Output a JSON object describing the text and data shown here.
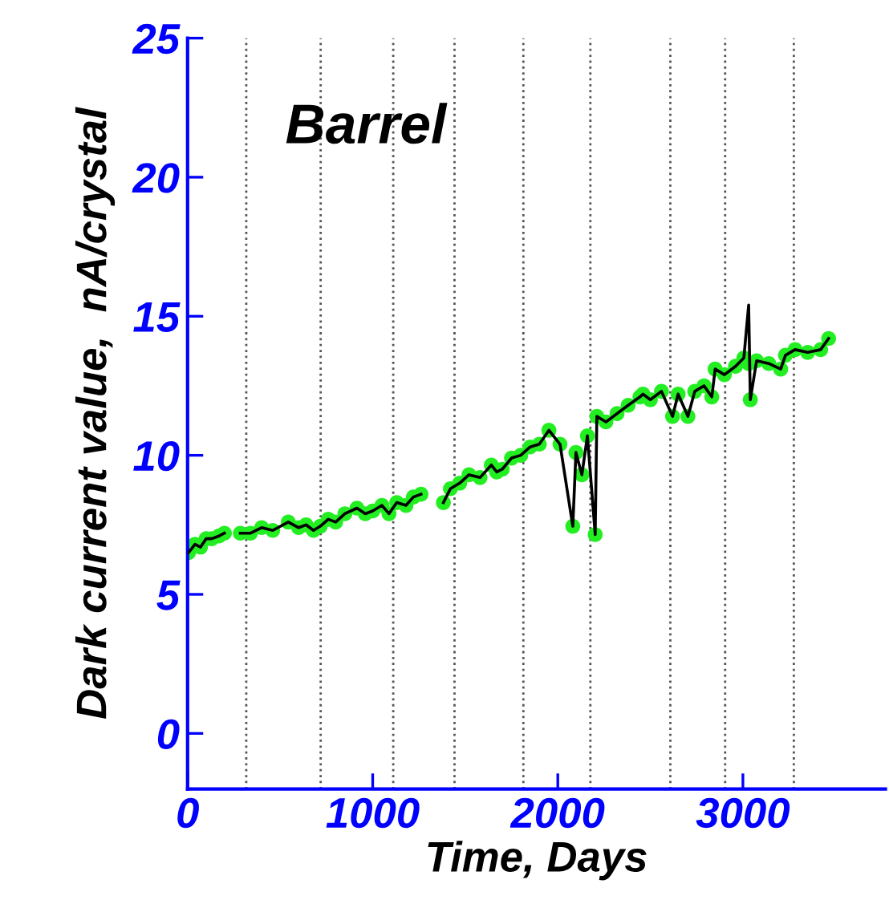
{
  "chart_data": {
    "type": "line",
    "xlabel": "Time, Days",
    "ylabel": "Dark current value,  nA/crystal",
    "annotations": [
      "Barrel"
    ],
    "xlim": [
      0,
      3770
    ],
    "xticks": [
      0,
      1000,
      2000,
      3000
    ],
    "ylim": [
      -2,
      25
    ],
    "yticks": [
      0,
      5,
      10,
      15,
      20,
      25
    ],
    "grid": false,
    "legend": false,
    "x": [
      5,
      40,
      70,
      100,
      130,
      170,
      199,
      240,
      285,
      340,
      400,
      460,
      544,
      600,
      640,
      680,
      717,
      760,
      800,
      850,
      915,
      960,
      1000,
      1050,
      1088,
      1130,
      1180,
      1220,
      1261,
      1300,
      1382,
      1420,
      1470,
      1520,
      1580,
      1641,
      1670,
      1700,
      1750,
      1800,
      1850,
      1900,
      1952,
      2012,
      2081,
      2098,
      2130,
      2160,
      2202,
      2211,
      2260,
      2320,
      2380,
      2444,
      2460,
      2500,
      2560,
      2620,
      2650,
      2703,
      2740,
      2790,
      2832,
      2850,
      2900,
      2960,
      3005,
      3031,
      3040,
      3074,
      3140,
      3204,
      3230,
      3282,
      3350,
      3420,
      3463
    ],
    "series": [
      {
        "type": "scatter",
        "color": "#22ee22",
        "marker": "circle",
        "values": [
          6.5,
          6.8,
          6.7,
          7.0,
          7.0,
          7.1,
          7.2,
          null,
          7.2,
          7.2,
          7.4,
          7.3,
          7.6,
          7.4,
          7.5,
          7.3,
          7.45,
          7.7,
          7.6,
          7.9,
          8.1,
          7.9,
          8.0,
          8.2,
          7.9,
          8.3,
          8.2,
          8.5,
          8.6,
          null,
          8.3,
          8.8,
          9.0,
          9.3,
          9.2,
          9.65,
          9.4,
          9.5,
          9.9,
          10.0,
          10.3,
          10.4,
          10.9,
          10.4,
          7.45,
          10.1,
          9.3,
          10.7,
          7.15,
          11.4,
          11.2,
          11.5,
          11.8,
          12.1,
          12.2,
          12.0,
          12.3,
          11.4,
          12.2,
          11.4,
          12.3,
          12.5,
          12.1,
          13.1,
          12.9,
          13.2,
          13.5,
          13.3,
          12.0,
          13.4,
          13.3,
          13.1,
          13.6,
          13.8,
          13.7,
          13.8,
          14.2
        ]
      },
      {
        "color": "#000000",
        "line_style": "solid",
        "values": [
          6.5,
          6.8,
          6.7,
          7.0,
          7.0,
          7.1,
          7.2,
          null,
          7.2,
          7.2,
          7.4,
          7.3,
          7.6,
          7.4,
          7.5,
          7.3,
          7.45,
          7.7,
          7.6,
          7.9,
          8.1,
          7.9,
          8.0,
          8.2,
          7.9,
          8.3,
          8.2,
          8.5,
          8.6,
          null,
          8.3,
          8.8,
          9.0,
          9.3,
          9.2,
          9.65,
          9.4,
          9.5,
          9.9,
          10.0,
          10.3,
          10.4,
          10.9,
          10.4,
          7.45,
          10.1,
          9.3,
          10.7,
          7.15,
          11.4,
          11.2,
          11.5,
          11.8,
          12.1,
          12.2,
          12.0,
          12.3,
          11.4,
          12.2,
          11.4,
          12.3,
          12.5,
          12.1,
          13.1,
          12.9,
          13.2,
          13.5,
          15.4,
          12.0,
          13.4,
          13.3,
          13.1,
          13.6,
          13.8,
          13.7,
          13.8,
          14.2
        ]
      }
    ],
    "ref_lines": [
      {
        "axis": "x",
        "value": 317,
        "color": "#555555",
        "line_style": "dotted"
      },
      {
        "axis": "x",
        "value": 719,
        "color": "#555555",
        "line_style": "dotted"
      },
      {
        "axis": "x",
        "value": 1111,
        "color": "#555555",
        "line_style": "dotted"
      },
      {
        "axis": "x",
        "value": 1442,
        "color": "#555555",
        "line_style": "dotted"
      },
      {
        "axis": "x",
        "value": 1814,
        "color": "#555555",
        "line_style": "dotted"
      },
      {
        "axis": "x",
        "value": 2176,
        "color": "#555555",
        "line_style": "dotted"
      },
      {
        "axis": "x",
        "value": 2608,
        "color": "#555555",
        "line_style": "dotted"
      },
      {
        "axis": "x",
        "value": 2904,
        "color": "#555555",
        "line_style": "dotted"
      },
      {
        "axis": "x",
        "value": 3275,
        "color": "#555555",
        "line_style": "dotted"
      }
    ]
  }
}
